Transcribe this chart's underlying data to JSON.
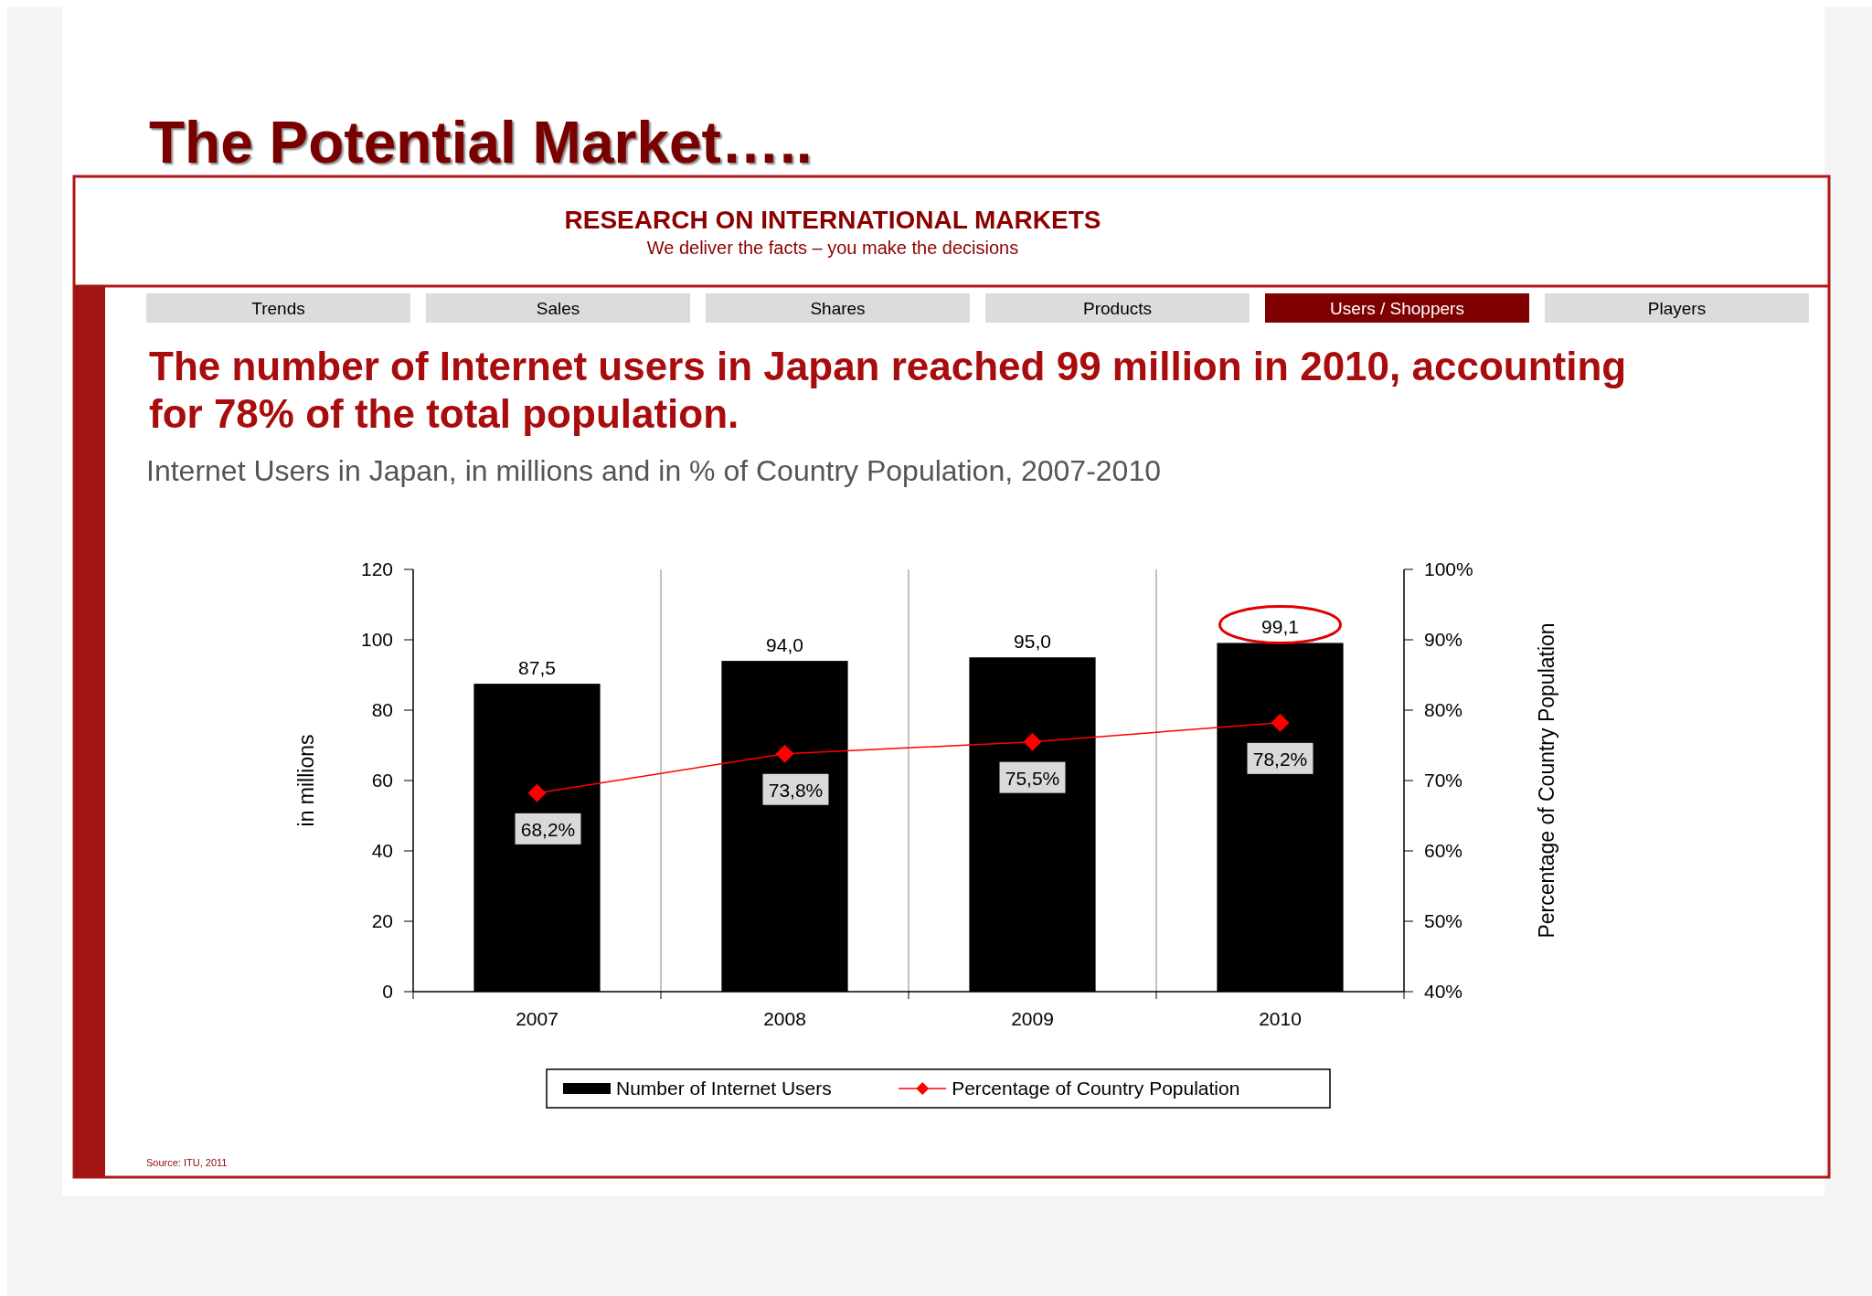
{
  "chart_data": {
    "type": "bar",
    "title": "The Potential Market…..",
    "subtitle": "The number of Internet users in Japan reached 99 million in 2010, accounting for 78% of the total population.",
    "annotations": [
      "RESEARCH ON INTERNATIONAL MARKETS",
      "We deliver the facts – you make the decisions",
      "Trends",
      "Sales",
      "Shares",
      "Products",
      "Users / Shoppers",
      "Players",
      "Internet Users in Japan, in millions and in % of Country Population, 2007-2010",
      "Source: ITU, 2011"
    ],
    "categories": [
      "2007",
      "2008",
      "2009",
      "2010"
    ],
    "series": [
      {
        "name": "Number of Internet Users",
        "color": "#000000",
        "values": [
          87.5,
          94.0,
          95.0,
          99.1
        ],
        "value_labels": [
          "87,5",
          "94,0",
          "95,0",
          "99,1"
        ]
      },
      {
        "name": "Percentage of Country Population",
        "type": "line",
        "axis": "y2",
        "color": "#ff0000",
        "marker": "diamond",
        "values": [
          68.2,
          73.8,
          75.5,
          78.2
        ],
        "value_labels": [
          "68,2%",
          "73,8%",
          "75,5%",
          "78,2%"
        ]
      }
    ],
    "ylabel": "in millions",
    "y2label": "Percentage of Country Population",
    "ylim": [
      0,
      120
    ],
    "yticks": [
      0,
      20,
      40,
      60,
      80,
      100,
      120
    ],
    "y2lim": [
      40,
      100
    ],
    "y2ticks": [
      {
        "value": 40,
        "label": "40%"
      },
      {
        "value": 50,
        "label": "50%"
      },
      {
        "value": 60,
        "label": "60%"
      },
      {
        "value": 70,
        "label": "70%"
      },
      {
        "value": 80,
        "label": "80%"
      },
      {
        "value": 90,
        "label": "90%"
      },
      {
        "value": 100,
        "label": "100%"
      }
    ],
    "grid": "x",
    "legend": "bottom"
  }
}
